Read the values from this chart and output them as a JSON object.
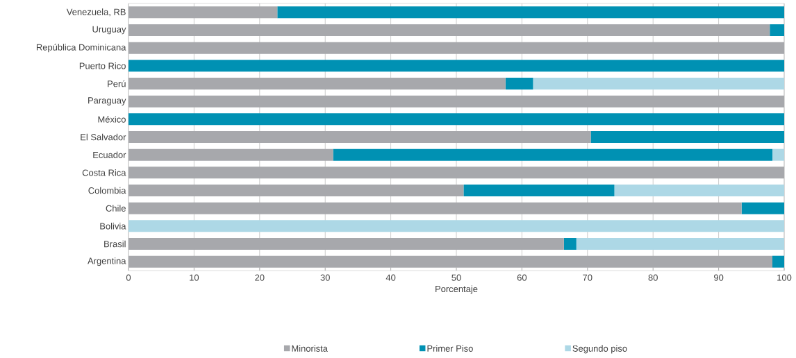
{
  "chart_data": {
    "type": "bar",
    "orientation": "horizontal",
    "stacked": true,
    "xlabel": "Porcentaje",
    "categories": [
      "Venezuela, RB",
      "Uruguay",
      "República Dominicana",
      "Puerto Rico",
      "Perú",
      "Paraguay",
      "México",
      "El Salvador",
      "Ecuador",
      "Costa Rica",
      "Colombia",
      "Chile",
      "Bolivia",
      "Brasil",
      "Argentina"
    ],
    "series": [
      {
        "name": "Minorista",
        "color": "#a7a8ac",
        "values": [
          22.7,
          97.8,
          100,
          0,
          57.5,
          100,
          0,
          70.5,
          31.2,
          100,
          51.1,
          93.5,
          0,
          66.4,
          98.2
        ]
      },
      {
        "name": "Primer Piso",
        "color": "#0091b3",
        "values": [
          77.3,
          2.2,
          0,
          100,
          4.2,
          0,
          100,
          29.5,
          67.0,
          0,
          23.0,
          6.5,
          0,
          1.9,
          1.8
        ]
      },
      {
        "name": "Segundo piso",
        "color": "#add8e6",
        "values": [
          0,
          0,
          0,
          0,
          38.3,
          0,
          0,
          0,
          1.8,
          0,
          25.9,
          0,
          100,
          31.7,
          0
        ]
      }
    ],
    "xlim": [
      0,
      100
    ],
    "xticks": [
      0,
      10,
      20,
      30,
      40,
      50,
      60,
      70,
      80,
      90,
      100
    ],
    "grid": "x",
    "legend": "bottom"
  }
}
